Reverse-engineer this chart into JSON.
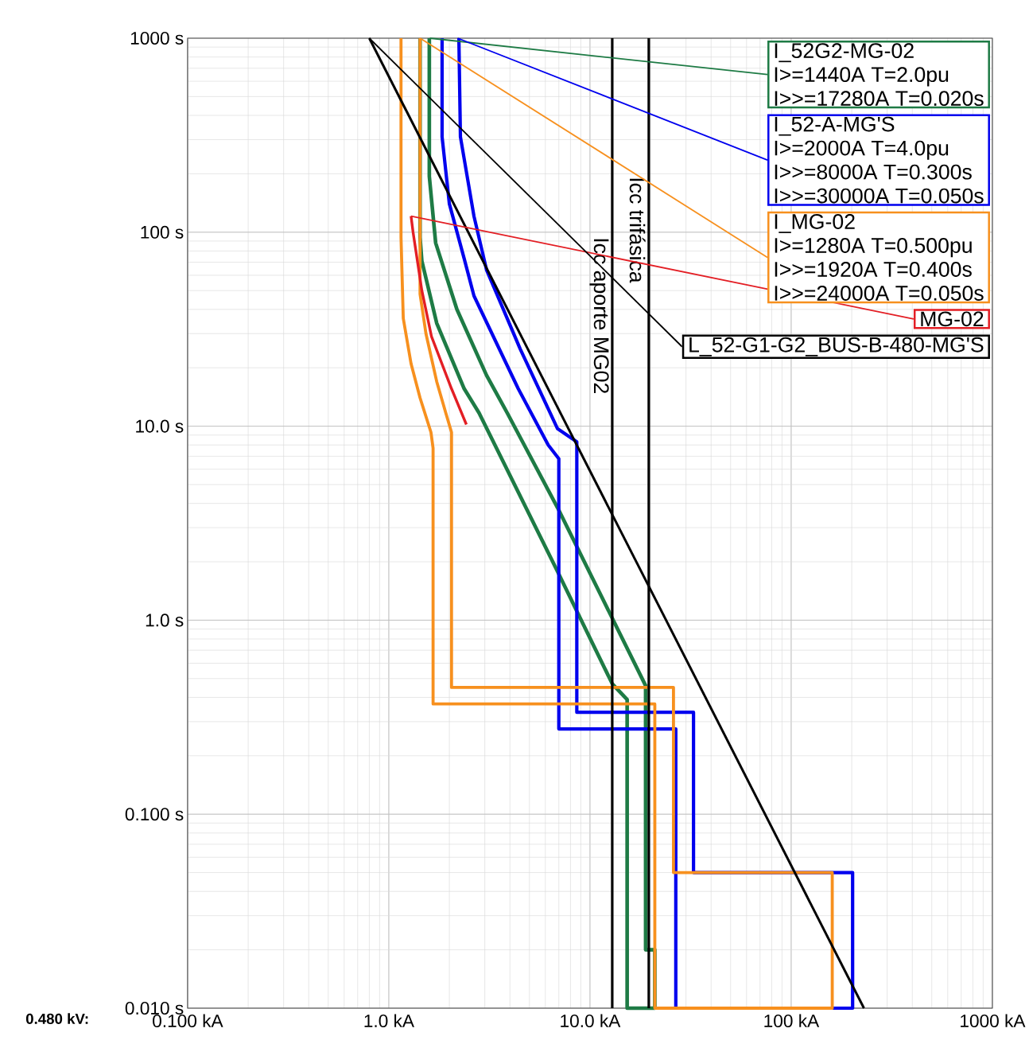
{
  "chart_data": {
    "type": "line",
    "log": "xy",
    "grid": true,
    "xlim": [
      0.1,
      1000
    ],
    "ylim": [
      0.01,
      1000
    ],
    "xticks": [
      {
        "value": 0.1,
        "label": "0.100 kA"
      },
      {
        "value": 1,
        "label": "1.0 kA"
      },
      {
        "value": 10,
        "label": "10.0 kA"
      },
      {
        "value": 100,
        "label": "100 kA"
      },
      {
        "value": 1000,
        "label": "1000 kA"
      }
    ],
    "yticks": [
      {
        "value": 0.01,
        "label": "0.010 s"
      },
      {
        "value": 0.1,
        "label": "0.100 s"
      },
      {
        "value": 1,
        "label": "1.0 s"
      },
      {
        "value": 10,
        "label": "10.0 s"
      },
      {
        "value": 100,
        "label": "100 s"
      },
      {
        "value": 1000,
        "label": "1000 s"
      }
    ],
    "series": [
      {
        "color": "#1e7b45",
        "x": [
          1.43,
          1.43,
          1.46,
          1.73,
          2.37,
          2.81,
          6.9,
          12.9,
          15.3,
          15.3,
          21,
          21,
          18.9,
          18.9,
          6.9,
          3.88,
          3.06,
          2.18,
          1.71,
          1.59,
          1.59
        ],
        "values": [
          1000,
          94,
          71,
          34,
          15.6,
          11.7,
          1.78,
          0.47,
          0.39,
          0.01,
          0.01,
          0.02,
          0.02,
          0.46,
          3.8,
          11.7,
          18.3,
          40,
          88,
          194,
          1000
        ]
      },
      {
        "color": "#0000ee",
        "x": [
          1.84,
          1.84,
          2.0,
          2.37,
          2.65,
          4.4,
          6.2,
          7.0,
          7.0,
          26.7,
          26.7,
          202,
          202,
          32.7,
          32.7,
          8.6,
          8.6,
          6.9,
          4.5,
          3.06,
          2.65,
          2.27,
          2.23
        ],
        "values": [
          1000,
          310,
          140,
          73,
          47,
          15.6,
          8,
          6.8,
          0.275,
          0.275,
          0.01,
          0.01,
          0.05,
          0.05,
          0.335,
          0.335,
          8.3,
          9.7,
          25,
          64,
          121,
          310,
          1000
        ]
      },
      {
        "color": "#f7901e",
        "x": [
          1.15,
          1.15,
          1.18,
          1.29,
          1.43,
          1.62,
          1.66,
          1.66,
          21,
          21,
          160,
          160,
          26,
          26,
          2.05,
          2.05,
          1.92,
          1.73,
          1.53,
          1.43,
          1.43
        ],
        "values": [
          1000,
          94,
          36,
          21,
          14,
          9.3,
          7.7,
          0.37,
          0.37,
          0.01,
          0.01,
          0.05,
          0.05,
          0.45,
          0.45,
          9.3,
          11.7,
          17,
          30,
          48,
          1000
        ]
      },
      {
        "color": "#e31e24",
        "x": [
          1.29,
          1.32,
          1.46,
          1.63,
          2.05,
          2.43
        ],
        "values": [
          121,
          100,
          50,
          29,
          15.6,
          10.2
        ]
      },
      {
        "color": "#000000",
        "x": [
          0.8,
          230
        ],
        "values": [
          1000,
          0.01
        ]
      }
    ],
    "ref_lines": [
      {
        "axis": "x",
        "value": 12.9,
        "label": "Icc aporte MG02",
        "color": "#000000"
      },
      {
        "axis": "x",
        "value": 19.6,
        "label": "Icc trifásica",
        "color": "#000000"
      }
    ],
    "annotations": [
      "0.480 kV:",
      {
        "text": "I_52G2-MG-02",
        "x": 1.6,
        "y": 1000
      },
      "I>=1440A T=2.0pu",
      "I>>=17280A T=0.020s",
      {
        "text": "I_52-A-MG'S",
        "x": 2.2,
        "y": 1000
      },
      "I>=2000A T=4.0pu",
      "I>>=8000A T=0.300s",
      "I>>=30000A T=0.050s",
      {
        "text": "I_MG-02",
        "x": 1.43,
        "y": 1000
      },
      "I>=1280A T=0.500pu",
      "I>>=1920A T=0.400s",
      "I>>=24000A T=0.050s",
      {
        "text": "MG-02",
        "x": 1.29,
        "y": 121
      },
      {
        "text": "L_52-G1-G2_BUS-B-480-MG'S",
        "x": 0.8,
        "y": 1000
      }
    ]
  }
}
